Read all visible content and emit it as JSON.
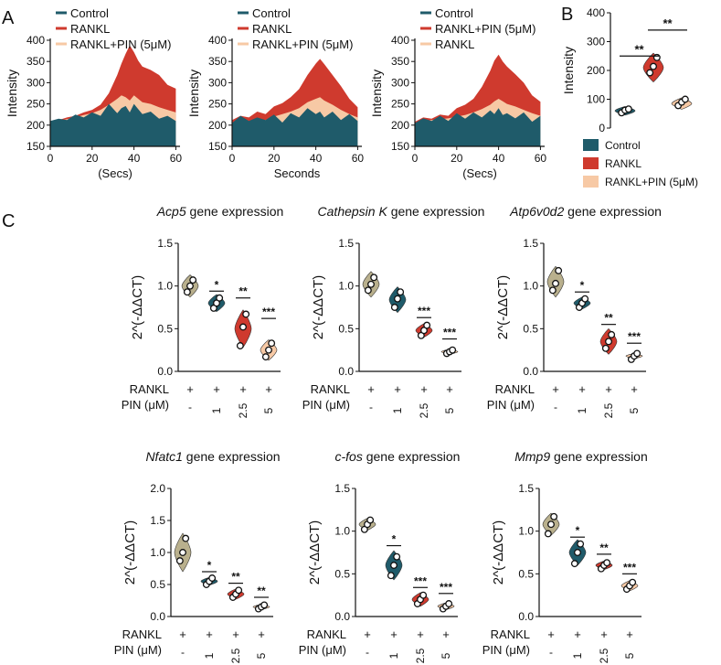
{
  "colors": {
    "control": "#1f5b6a",
    "rankl": "#cf3a2e",
    "pin": "#f7c9a5",
    "gene_first": "#b9b08d",
    "axis": "#111111"
  },
  "panel_labels": {
    "a": "A",
    "b": "B",
    "c": "C"
  },
  "chart_data": [
    {
      "id": "A1",
      "type": "area",
      "ylabel": "Intensity",
      "xlabel": "(Secs)",
      "xlim": [
        0,
        62
      ],
      "ylim": [
        150,
        400
      ],
      "yticks": [
        "150",
        "200",
        "250",
        "300",
        "350",
        "400"
      ],
      "xticks": [
        "0",
        "20",
        "40",
        "60"
      ],
      "legend": [
        "Control",
        "RANKL",
        "RANKL+PIN (5μM)"
      ],
      "draw_order": [
        "RANKL",
        "RANKL+PIN (5μM)",
        "Control"
      ],
      "x": [
        0,
        4,
        8,
        12,
        16,
        20,
        24,
        28,
        32,
        34,
        36,
        38,
        40,
        42,
        44,
        48,
        52,
        56,
        60
      ],
      "series": [
        {
          "name": "RANKL",
          "color_key": "rankl",
          "values": [
            208,
            212,
            218,
            222,
            230,
            236,
            248,
            275,
            318,
            345,
            368,
            388,
            372,
            352,
            338,
            330,
            318,
            295,
            286
          ]
        },
        {
          "name": "RANKL+PIN (5μM)",
          "color_key": "pin",
          "values": [
            205,
            210,
            214,
            218,
            224,
            228,
            236,
            248,
            262,
            270,
            266,
            258,
            270,
            262,
            254,
            250,
            242,
            236,
            230
          ]
        },
        {
          "name": "Control",
          "color_key": "control",
          "values": [
            210,
            215,
            212,
            225,
            218,
            230,
            222,
            250,
            228,
            240,
            245,
            230,
            250,
            238,
            226,
            232,
            215,
            222,
            210
          ]
        }
      ]
    },
    {
      "id": "A2",
      "type": "area",
      "ylabel": "Intensity",
      "xlabel": "Seconds",
      "xlim": [
        0,
        62
      ],
      "ylim": [
        150,
        400
      ],
      "yticks": [
        "150",
        "200",
        "250",
        "300",
        "350",
        "400"
      ],
      "xticks": [
        "0",
        "20",
        "40",
        "60"
      ],
      "legend": [
        "Control",
        "RANKL",
        "RANKL+PIN (5μM)"
      ],
      "draw_order": [
        "RANKL",
        "RANKL+PIN (5μM)",
        "Control"
      ],
      "x": [
        0,
        4,
        8,
        12,
        16,
        20,
        24,
        28,
        32,
        36,
        40,
        42,
        44,
        48,
        52,
        56,
        60
      ],
      "series": [
        {
          "name": "RANKL",
          "color_key": "rankl",
          "values": [
            212,
            222,
            218,
            232,
            226,
            244,
            252,
            266,
            285,
            318,
            345,
            356,
            344,
            318,
            292,
            262,
            242
          ]
        },
        {
          "name": "RANKL+PIN (5μM)",
          "color_key": "pin",
          "values": [
            205,
            210,
            208,
            214,
            212,
            220,
            226,
            232,
            240,
            254,
            262,
            266,
            258,
            248,
            236,
            226,
            218
          ]
        },
        {
          "name": "Control",
          "color_key": "control",
          "values": [
            205,
            222,
            210,
            218,
            212,
            225,
            206,
            228,
            218,
            240,
            226,
            232,
            218,
            232,
            212,
            226,
            210
          ]
        }
      ]
    },
    {
      "id": "A3",
      "type": "area",
      "ylabel": "Intensity",
      "xlabel": "(Secs)",
      "xlim": [
        0,
        62
      ],
      "ylim": [
        150,
        400
      ],
      "yticks": [
        "150",
        "200",
        "250",
        "300",
        "350",
        "400"
      ],
      "xticks": [
        "0",
        "20",
        "40",
        "60"
      ],
      "legend": [
        "Control",
        "RANKL+PIN (5μM)",
        "RANKL"
      ],
      "draw_order": [
        "RANKL+PIN (5μM)",
        "RANKL",
        "Control"
      ],
      "x": [
        0,
        4,
        8,
        12,
        16,
        20,
        24,
        28,
        32,
        36,
        38,
        40,
        42,
        44,
        48,
        52,
        56,
        60
      ],
      "series": [
        {
          "name": "RANKL+PIN (5μM)",
          "color_key": "rankl",
          "values": [
            208,
            218,
            215,
            225,
            222,
            240,
            248,
            262,
            290,
            328,
            352,
            366,
            350,
            338,
            320,
            300,
            270,
            255
          ]
        },
        {
          "name": "RANKL",
          "color_key": "pin",
          "values": [
            205,
            210,
            212,
            214,
            216,
            220,
            224,
            230,
            238,
            248,
            256,
            262,
            256,
            250,
            244,
            236,
            228,
            222
          ]
        },
        {
          "name": "Control",
          "color_key": "control",
          "values": [
            205,
            216,
            210,
            222,
            210,
            228,
            215,
            230,
            218,
            235,
            226,
            240,
            224,
            228,
            216,
            230,
            208,
            222
          ]
        }
      ]
    },
    {
      "id": "B",
      "type": "violin",
      "ylabel": "Intensity",
      "ylim": [
        0,
        400
      ],
      "yticks": [
        "0",
        "100",
        "200",
        "300",
        "400"
      ],
      "groups": [
        {
          "name": "Control",
          "color_key": "control",
          "center": 60,
          "spread": 15,
          "points": [
            53,
            62,
            66
          ]
        },
        {
          "name": "RANKL",
          "color_key": "rankl",
          "center": 210,
          "spread": 50,
          "points": [
            192,
            214,
            245
          ]
        },
        {
          "name": "RANKL+PIN (5μM)",
          "color_key": "pin",
          "center": 85,
          "spread": 20,
          "points": [
            78,
            90,
            100
          ]
        }
      ],
      "significance": [
        {
          "from": 0,
          "to": 1,
          "y": 250,
          "label": "**"
        },
        {
          "from": 1,
          "to": 2,
          "y": 340,
          "label": "**"
        }
      ],
      "legend": [
        "Control",
        "RANKL",
        "RANKL+PIN (5μM)"
      ]
    },
    {
      "id": "C1",
      "type": "violin",
      "gene": "Acp5",
      "title_suffix": " gene expression",
      "ylabel": "2^(-ΔΔCT)",
      "ylim": [
        0,
        1.5
      ],
      "yticks": [
        "0.0",
        "0.5",
        "1.0",
        "1.5"
      ],
      "groups": [
        {
          "center": 1.0,
          "spread": 0.13,
          "points": [
            0.93,
            1.0,
            1.07
          ]
        },
        {
          "center": 0.8,
          "spread": 0.1,
          "points": [
            0.74,
            0.8,
            0.86
          ]
        },
        {
          "center": 0.5,
          "spread": 0.22,
          "points": [
            0.3,
            0.52,
            0.67
          ]
        },
        {
          "center": 0.25,
          "spread": 0.12,
          "points": [
            0.17,
            0.25,
            0.33
          ]
        }
      ],
      "significance": [
        {
          "group": 1,
          "y": 0.94,
          "label": "*"
        },
        {
          "group": 2,
          "y": 0.86,
          "label": "**"
        },
        {
          "group": 3,
          "y": 0.62,
          "label": "***"
        }
      ],
      "rows": [
        {
          "label": "RANKL",
          "values": [
            "+",
            "+",
            "+",
            "+"
          ]
        },
        {
          "label": "PIN (μM)",
          "values": [
            "-",
            "1",
            "2.5",
            "5"
          ]
        }
      ]
    },
    {
      "id": "C2",
      "type": "violin",
      "gene": "Cathepsin K",
      "title_suffix": " gene expression",
      "ylabel": "2^(-ΔΔCT)",
      "ylim": [
        0,
        1.5
      ],
      "yticks": [
        "0.0",
        "0.5",
        "1.0",
        "1.5"
      ],
      "groups": [
        {
          "center": 1.02,
          "spread": 0.15,
          "points": [
            0.95,
            1.02,
            1.1
          ]
        },
        {
          "center": 0.84,
          "spread": 0.15,
          "points": [
            0.75,
            0.85,
            0.93
          ]
        },
        {
          "center": 0.48,
          "spread": 0.08,
          "points": [
            0.42,
            0.48,
            0.54
          ]
        },
        {
          "center": 0.23,
          "spread": 0.03,
          "points": [
            0.21,
            0.23,
            0.25
          ]
        }
      ],
      "significance": [
        {
          "group": 2,
          "y": 0.63,
          "label": "***"
        },
        {
          "group": 3,
          "y": 0.38,
          "label": "***"
        }
      ],
      "rows": [
        {
          "label": "RANKL",
          "values": [
            "+",
            "+",
            "+",
            "+"
          ]
        },
        {
          "label": "PIN (μM)",
          "values": [
            "-",
            "1",
            "2.5",
            "5"
          ]
        }
      ]
    },
    {
      "id": "C3",
      "type": "violin",
      "gene": "Atp6v0d2",
      "title_suffix": " gene expression",
      "ylabel": "2^(-ΔΔCT)",
      "ylim": [
        0,
        1.5
      ],
      "yticks": [
        "0.0",
        "0.5",
        "1.0",
        "1.5"
      ],
      "groups": [
        {
          "center": 1.05,
          "spread": 0.18,
          "points": [
            0.95,
            1.03,
            1.18
          ]
        },
        {
          "center": 0.8,
          "spread": 0.07,
          "points": [
            0.75,
            0.8,
            0.85
          ]
        },
        {
          "center": 0.35,
          "spread": 0.15,
          "points": [
            0.27,
            0.35,
            0.43
          ]
        },
        {
          "center": 0.18,
          "spread": 0.03,
          "points": [
            0.14,
            0.18,
            0.21
          ]
        }
      ],
      "significance": [
        {
          "group": 1,
          "y": 0.93,
          "label": "*"
        },
        {
          "group": 2,
          "y": 0.55,
          "label": "**"
        },
        {
          "group": 3,
          "y": 0.33,
          "label": "***"
        }
      ],
      "rows": [
        {
          "label": "RANKL",
          "values": [
            "+",
            "+",
            "+",
            "+"
          ]
        },
        {
          "label": "PIN (μM)",
          "values": [
            "-",
            "1",
            "2.5",
            "5"
          ]
        }
      ]
    },
    {
      "id": "C4",
      "type": "violin",
      "gene": "Nfatc1",
      "title_suffix": " gene expression",
      "ylabel": "2^(-ΔΔCT)",
      "ylim": [
        0,
        2.0
      ],
      "yticks": [
        "0.0",
        "0.5",
        "1.0",
        "1.5",
        "2.0"
      ],
      "groups": [
        {
          "center": 1.0,
          "spread": 0.3,
          "points": [
            0.87,
            1.0,
            1.22
          ]
        },
        {
          "center": 0.55,
          "spread": 0.06,
          "points": [
            0.5,
            0.55,
            0.6
          ]
        },
        {
          "center": 0.35,
          "spread": 0.08,
          "points": [
            0.3,
            0.35,
            0.41
          ]
        },
        {
          "center": 0.15,
          "spread": 0.04,
          "points": [
            0.12,
            0.15,
            0.18
          ]
        }
      ],
      "significance": [
        {
          "group": 1,
          "y": 0.7,
          "label": "*"
        },
        {
          "group": 2,
          "y": 0.52,
          "label": "**"
        },
        {
          "group": 3,
          "y": 0.3,
          "label": "**"
        }
      ],
      "rows": [
        {
          "label": "RANKL",
          "values": [
            "+",
            "+",
            "+",
            "+"
          ]
        },
        {
          "label": "PIN (μM)",
          "values": [
            "-",
            "1",
            "2.5",
            "5"
          ]
        }
      ]
    },
    {
      "id": "C5",
      "type": "violin",
      "gene": "c-fos",
      "title_suffix": " gene expression",
      "ylabel": "2^(-ΔΔCT)",
      "ylim": [
        0,
        1.5
      ],
      "yticks": [
        "0.0",
        "0.5",
        "1.0",
        "1.5"
      ],
      "groups": [
        {
          "center": 1.08,
          "spread": 0.07,
          "points": [
            1.02,
            1.08,
            1.13
          ]
        },
        {
          "center": 0.6,
          "spread": 0.17,
          "points": [
            0.48,
            0.6,
            0.7
          ]
        },
        {
          "center": 0.2,
          "spread": 0.08,
          "points": [
            0.15,
            0.2,
            0.25
          ]
        },
        {
          "center": 0.12,
          "spread": 0.04,
          "points": [
            0.09,
            0.12,
            0.15
          ]
        }
      ],
      "significance": [
        {
          "group": 1,
          "y": 0.83,
          "label": "*"
        },
        {
          "group": 2,
          "y": 0.34,
          "label": "***"
        },
        {
          "group": 3,
          "y": 0.27,
          "label": "***"
        }
      ],
      "rows": [
        {
          "label": "RANKL",
          "values": [
            "+",
            "+",
            "+",
            "+"
          ]
        },
        {
          "label": "PIN (μM)",
          "values": [
            "-",
            "1",
            "2.5",
            "5"
          ]
        }
      ]
    },
    {
      "id": "C6",
      "type": "violin",
      "gene": "Mmp9",
      "title_suffix": " gene expression",
      "ylabel": "2^(-ΔΔCT)",
      "ylim": [
        0,
        1.5
      ],
      "yticks": [
        "0.0",
        "0.5",
        "1.0",
        "1.5"
      ],
      "groups": [
        {
          "center": 1.08,
          "spread": 0.13,
          "points": [
            0.97,
            1.08,
            1.17
          ]
        },
        {
          "center": 0.75,
          "spread": 0.15,
          "points": [
            0.62,
            0.75,
            0.85
          ]
        },
        {
          "center": 0.6,
          "spread": 0.05,
          "points": [
            0.56,
            0.6,
            0.63
          ]
        },
        {
          "center": 0.36,
          "spread": 0.06,
          "points": [
            0.32,
            0.36,
            0.4
          ]
        }
      ],
      "significance": [
        {
          "group": 1,
          "y": 0.93,
          "label": "*"
        },
        {
          "group": 2,
          "y": 0.73,
          "label": "**"
        },
        {
          "group": 3,
          "y": 0.5,
          "label": "***"
        }
      ],
      "rows": [
        {
          "label": "RANKL",
          "values": [
            "+",
            "+",
            "+",
            "+"
          ]
        },
        {
          "label": "PIN (μM)",
          "values": [
            "-",
            "1",
            "2.5",
            "5"
          ]
        }
      ]
    }
  ]
}
